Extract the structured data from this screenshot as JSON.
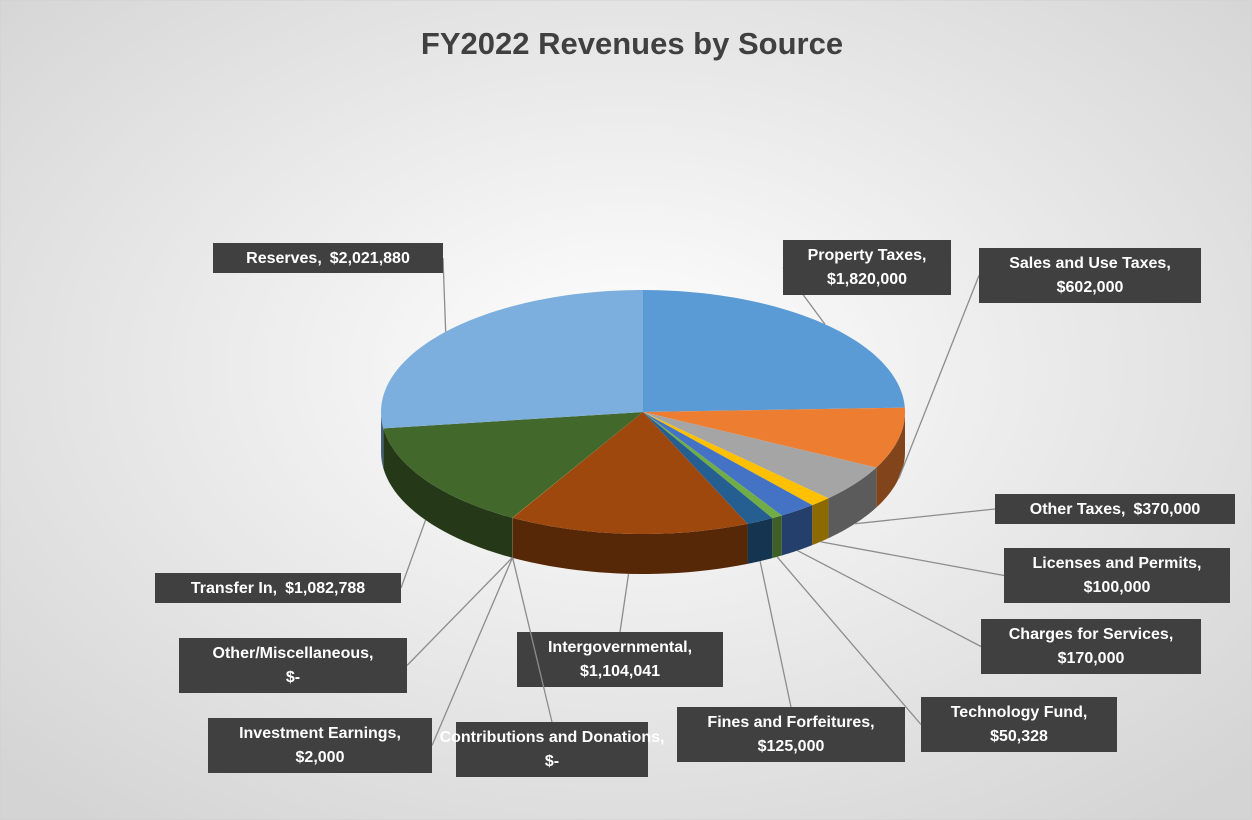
{
  "chart_data": {
    "type": "pie",
    "title": "FY2022 Revenues by Source",
    "categories": [
      "Property Taxes,",
      "Sales and Use Taxes,",
      "Other Taxes,",
      "Licenses and Permits,",
      "Charges for Services,",
      "Technology Fund,",
      "Fines and Forfeitures,",
      "Intergovernmental,",
      "Contributions and Donations,",
      "Investment Earnings,",
      "Other/Miscellaneous,",
      "Transfer In,",
      "Reserves,"
    ],
    "values": [
      1820000,
      602000,
      370000,
      100000,
      170000,
      50328,
      125000,
      1104041,
      0,
      2000,
      0,
      1082788,
      2021880
    ],
    "value_labels": [
      "$1,820,000",
      "$602,000",
      "$370,000",
      "$100,000",
      "$170,000",
      "$50,328",
      "$125,000",
      "$1,104,041",
      "$-",
      "$2,000",
      "$-",
      "$1,082,788",
      "$2,021,880"
    ],
    "colors": [
      "#5b9bd5",
      "#ed7d31",
      "#a5a5a5",
      "#ffc000",
      "#4472c4",
      "#70ad47",
      "#255e91",
      "#9e480e",
      "#636363",
      "#997300",
      "#264478",
      "#43682b",
      "#7cafdd"
    ]
  }
}
